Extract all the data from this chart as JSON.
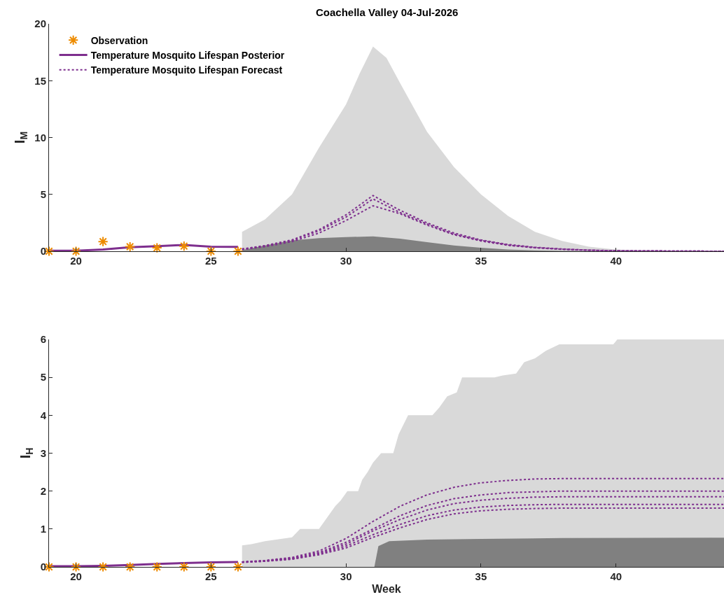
{
  "chart_data": [
    {
      "type": "line",
      "title": "Coachella Valley 04-Jul-2026",
      "ylabel": "I$_{M}$",
      "xlim": [
        19,
        44
      ],
      "xticks": [
        20,
        25,
        30,
        35,
        40
      ],
      "ylim": [
        0,
        20
      ],
      "yticks": [
        0,
        5,
        10,
        15,
        20
      ],
      "legend": "top left",
      "series": [
        {
          "type": "area",
          "color": "#d9d9d9",
          "x": [
            26.15,
            27,
            28,
            29,
            30,
            30.5,
            31,
            31.5,
            32,
            33,
            34,
            35,
            36,
            37,
            38,
            39,
            40,
            41,
            42,
            44
          ],
          "values": [
            1.7,
            2.8,
            5.0,
            9.1,
            12.9,
            15.6,
            18.0,
            17.0,
            14.8,
            10.5,
            7.4,
            5.0,
            3.1,
            1.7,
            0.9,
            0.4,
            0.15,
            0.05,
            0,
            0
          ]
        },
        {
          "type": "area",
          "color": "#808080",
          "x": [
            26.15,
            27,
            28,
            29,
            30,
            31,
            32,
            33,
            34,
            35,
            36,
            37,
            38,
            40,
            44
          ],
          "values": [
            0.1,
            0.5,
            0.95,
            1.15,
            1.25,
            1.3,
            1.1,
            0.8,
            0.5,
            0.3,
            0.15,
            0.07,
            0.03,
            0,
            0
          ]
        },
        {
          "name": "Temperature Mosquito Lifespan Posterior",
          "color": "#7e2f8e",
          "line_style": "solid",
          "marker": "none",
          "x": [
            19,
            20,
            21,
            22,
            23,
            24,
            25,
            26
          ],
          "values": [
            0.05,
            0.05,
            0.15,
            0.35,
            0.45,
            0.55,
            0.4,
            0.38
          ]
        },
        {
          "name": "Temperature Mosquito Lifespan Forecast",
          "color": "#7e2f8e",
          "line_style": "dotted",
          "marker": "none",
          "x": [
            26.15,
            27,
            28,
            29,
            30,
            31,
            32,
            33,
            34,
            35,
            36,
            37,
            38,
            39,
            40,
            42,
            44
          ],
          "values": [
            0.2,
            0.5,
            1.0,
            1.9,
            3.2,
            4.9,
            3.6,
            2.5,
            1.6,
            1.0,
            0.6,
            0.35,
            0.2,
            0.1,
            0.05,
            0.02,
            0
          ]
        },
        {
          "color": "#7e2f8e",
          "line_style": "dotted",
          "marker": "none",
          "x": [
            26.15,
            27,
            28,
            29,
            30,
            31,
            32,
            33,
            34,
            35,
            36,
            37,
            38,
            39,
            40,
            42,
            44
          ],
          "values": [
            0.2,
            0.45,
            0.95,
            1.8,
            3.0,
            4.6,
            3.4,
            2.4,
            1.5,
            0.95,
            0.55,
            0.32,
            0.18,
            0.09,
            0.04,
            0.02,
            0
          ]
        },
        {
          "color": "#7e2f8e",
          "line_style": "dotted",
          "marker": "none",
          "x": [
            26.15,
            27,
            28,
            29,
            30,
            31,
            32,
            33,
            34,
            35,
            36,
            37,
            38,
            39,
            40,
            42,
            44
          ],
          "values": [
            0.15,
            0.4,
            0.85,
            1.6,
            2.7,
            4.0,
            3.3,
            2.3,
            1.45,
            0.9,
            0.52,
            0.3,
            0.17,
            0.08,
            0.04,
            0.02,
            0
          ]
        },
        {
          "type": "scatter",
          "name": "Observation",
          "color": "#ed8b00",
          "marker": "cross",
          "x": [
            19,
            20,
            21,
            22,
            23,
            24,
            25,
            26
          ],
          "values": [
            0,
            0,
            0.85,
            0.4,
            0.3,
            0.45,
            0,
            0
          ]
        }
      ]
    },
    {
      "type": "line",
      "xlabel": "Week",
      "ylabel": "I$_{H}$",
      "xlim": [
        19,
        44
      ],
      "xticks": [
        20,
        25,
        30,
        35,
        40
      ],
      "ylim": [
        0,
        6
      ],
      "yticks": [
        0,
        1,
        2,
        3,
        4,
        5,
        6
      ],
      "series": [
        {
          "type": "area",
          "color": "#d9d9d9",
          "x": [
            26.15,
            26.5,
            27,
            27.5,
            28,
            28.3,
            29,
            29.3,
            29.6,
            29.8,
            30.05,
            30.45,
            30.6,
            30.8,
            31.0,
            31.3,
            31.75,
            31.95,
            32.3,
            33.2,
            33.45,
            33.75,
            34.1,
            34.3,
            35.5,
            35.8,
            36.3,
            36.6,
            37.0,
            37.4,
            37.9,
            39.9,
            40.05,
            44
          ],
          "values": [
            0.57,
            0.6,
            0.68,
            0.73,
            0.78,
            1.0,
            1.0,
            1.3,
            1.6,
            1.75,
            2.0,
            2.0,
            2.3,
            2.5,
            2.75,
            3.0,
            3.0,
            3.5,
            4.0,
            4.0,
            4.2,
            4.5,
            4.6,
            5.0,
            5.0,
            5.05,
            5.1,
            5.4,
            5.5,
            5.7,
            5.87,
            5.87,
            6.0,
            6.0
          ]
        },
        {
          "type": "area",
          "color": "#808080",
          "x": [
            31.05,
            31.2,
            31.6,
            33,
            35,
            38,
            44
          ],
          "values": [
            0,
            0.55,
            0.68,
            0.72,
            0.74,
            0.76,
            0.77
          ]
        },
        {
          "color": "#7e2f8e",
          "line_style": "solid",
          "marker": "none",
          "x": [
            19,
            20,
            21,
            22,
            23,
            24,
            25,
            26
          ],
          "values": [
            0.02,
            0.02,
            0.03,
            0.05,
            0.08,
            0.1,
            0.12,
            0.13
          ]
        },
        {
          "type": "line",
          "color": "#7e2f8e",
          "line_style": "dotted",
          "marker": "none",
          "x": [
            26.15,
            27,
            28,
            29,
            30,
            31,
            32,
            33,
            34,
            35,
            36,
            37,
            38,
            40,
            44
          ],
          "values": [
            0.13,
            0.17,
            0.25,
            0.42,
            0.75,
            1.2,
            1.6,
            1.9,
            2.1,
            2.22,
            2.28,
            2.32,
            2.33,
            2.33,
            2.33
          ]
        },
        {
          "type": "line",
          "color": "#7e2f8e",
          "line_style": "dotted",
          "marker": "none",
          "x": [
            26.15,
            27,
            28,
            29,
            30,
            31,
            32,
            33,
            34,
            35,
            36,
            37,
            38,
            40,
            44
          ],
          "values": [
            0.13,
            0.16,
            0.23,
            0.38,
            0.65,
            1.0,
            1.35,
            1.62,
            1.8,
            1.9,
            1.96,
            1.98,
            2.0,
            2.0,
            2.0
          ]
        },
        {
          "type": "line",
          "color": "#7e2f8e",
          "line_style": "dotted",
          "marker": "none",
          "x": [
            26.15,
            27,
            28,
            29,
            30,
            31,
            32,
            33,
            34,
            35,
            36,
            37,
            38,
            40,
            44
          ],
          "values": [
            0.13,
            0.16,
            0.22,
            0.36,
            0.6,
            0.95,
            1.25,
            1.5,
            1.67,
            1.76,
            1.81,
            1.84,
            1.85,
            1.85,
            1.85
          ]
        },
        {
          "type": "line",
          "color": "#7e2f8e",
          "line_style": "dotted",
          "marker": "none",
          "x": [
            26.15,
            27,
            28,
            29,
            30,
            31,
            32,
            33,
            34,
            35,
            36,
            37,
            38,
            40,
            44
          ],
          "values": [
            0.12,
            0.15,
            0.21,
            0.34,
            0.55,
            0.85,
            1.12,
            1.35,
            1.5,
            1.58,
            1.62,
            1.64,
            1.65,
            1.65,
            1.65
          ]
        },
        {
          "type": "line",
          "color": "#7e2f8e",
          "line_style": "dotted",
          "marker": "none",
          "x": [
            26.15,
            27,
            28,
            29,
            30,
            31,
            32,
            33,
            34,
            35,
            36,
            37,
            38,
            40,
            44
          ],
          "values": [
            0.12,
            0.15,
            0.2,
            0.32,
            0.5,
            0.78,
            1.03,
            1.25,
            1.4,
            1.48,
            1.52,
            1.54,
            1.55,
            1.55,
            1.55
          ]
        },
        {
          "type": "scatter",
          "color": "#ed8b00",
          "marker": "cross",
          "x": [
            19,
            20,
            21,
            22,
            23,
            24,
            25,
            26
          ],
          "values": [
            0,
            0,
            0,
            0,
            0,
            0,
            0,
            0
          ]
        }
      ]
    }
  ]
}
